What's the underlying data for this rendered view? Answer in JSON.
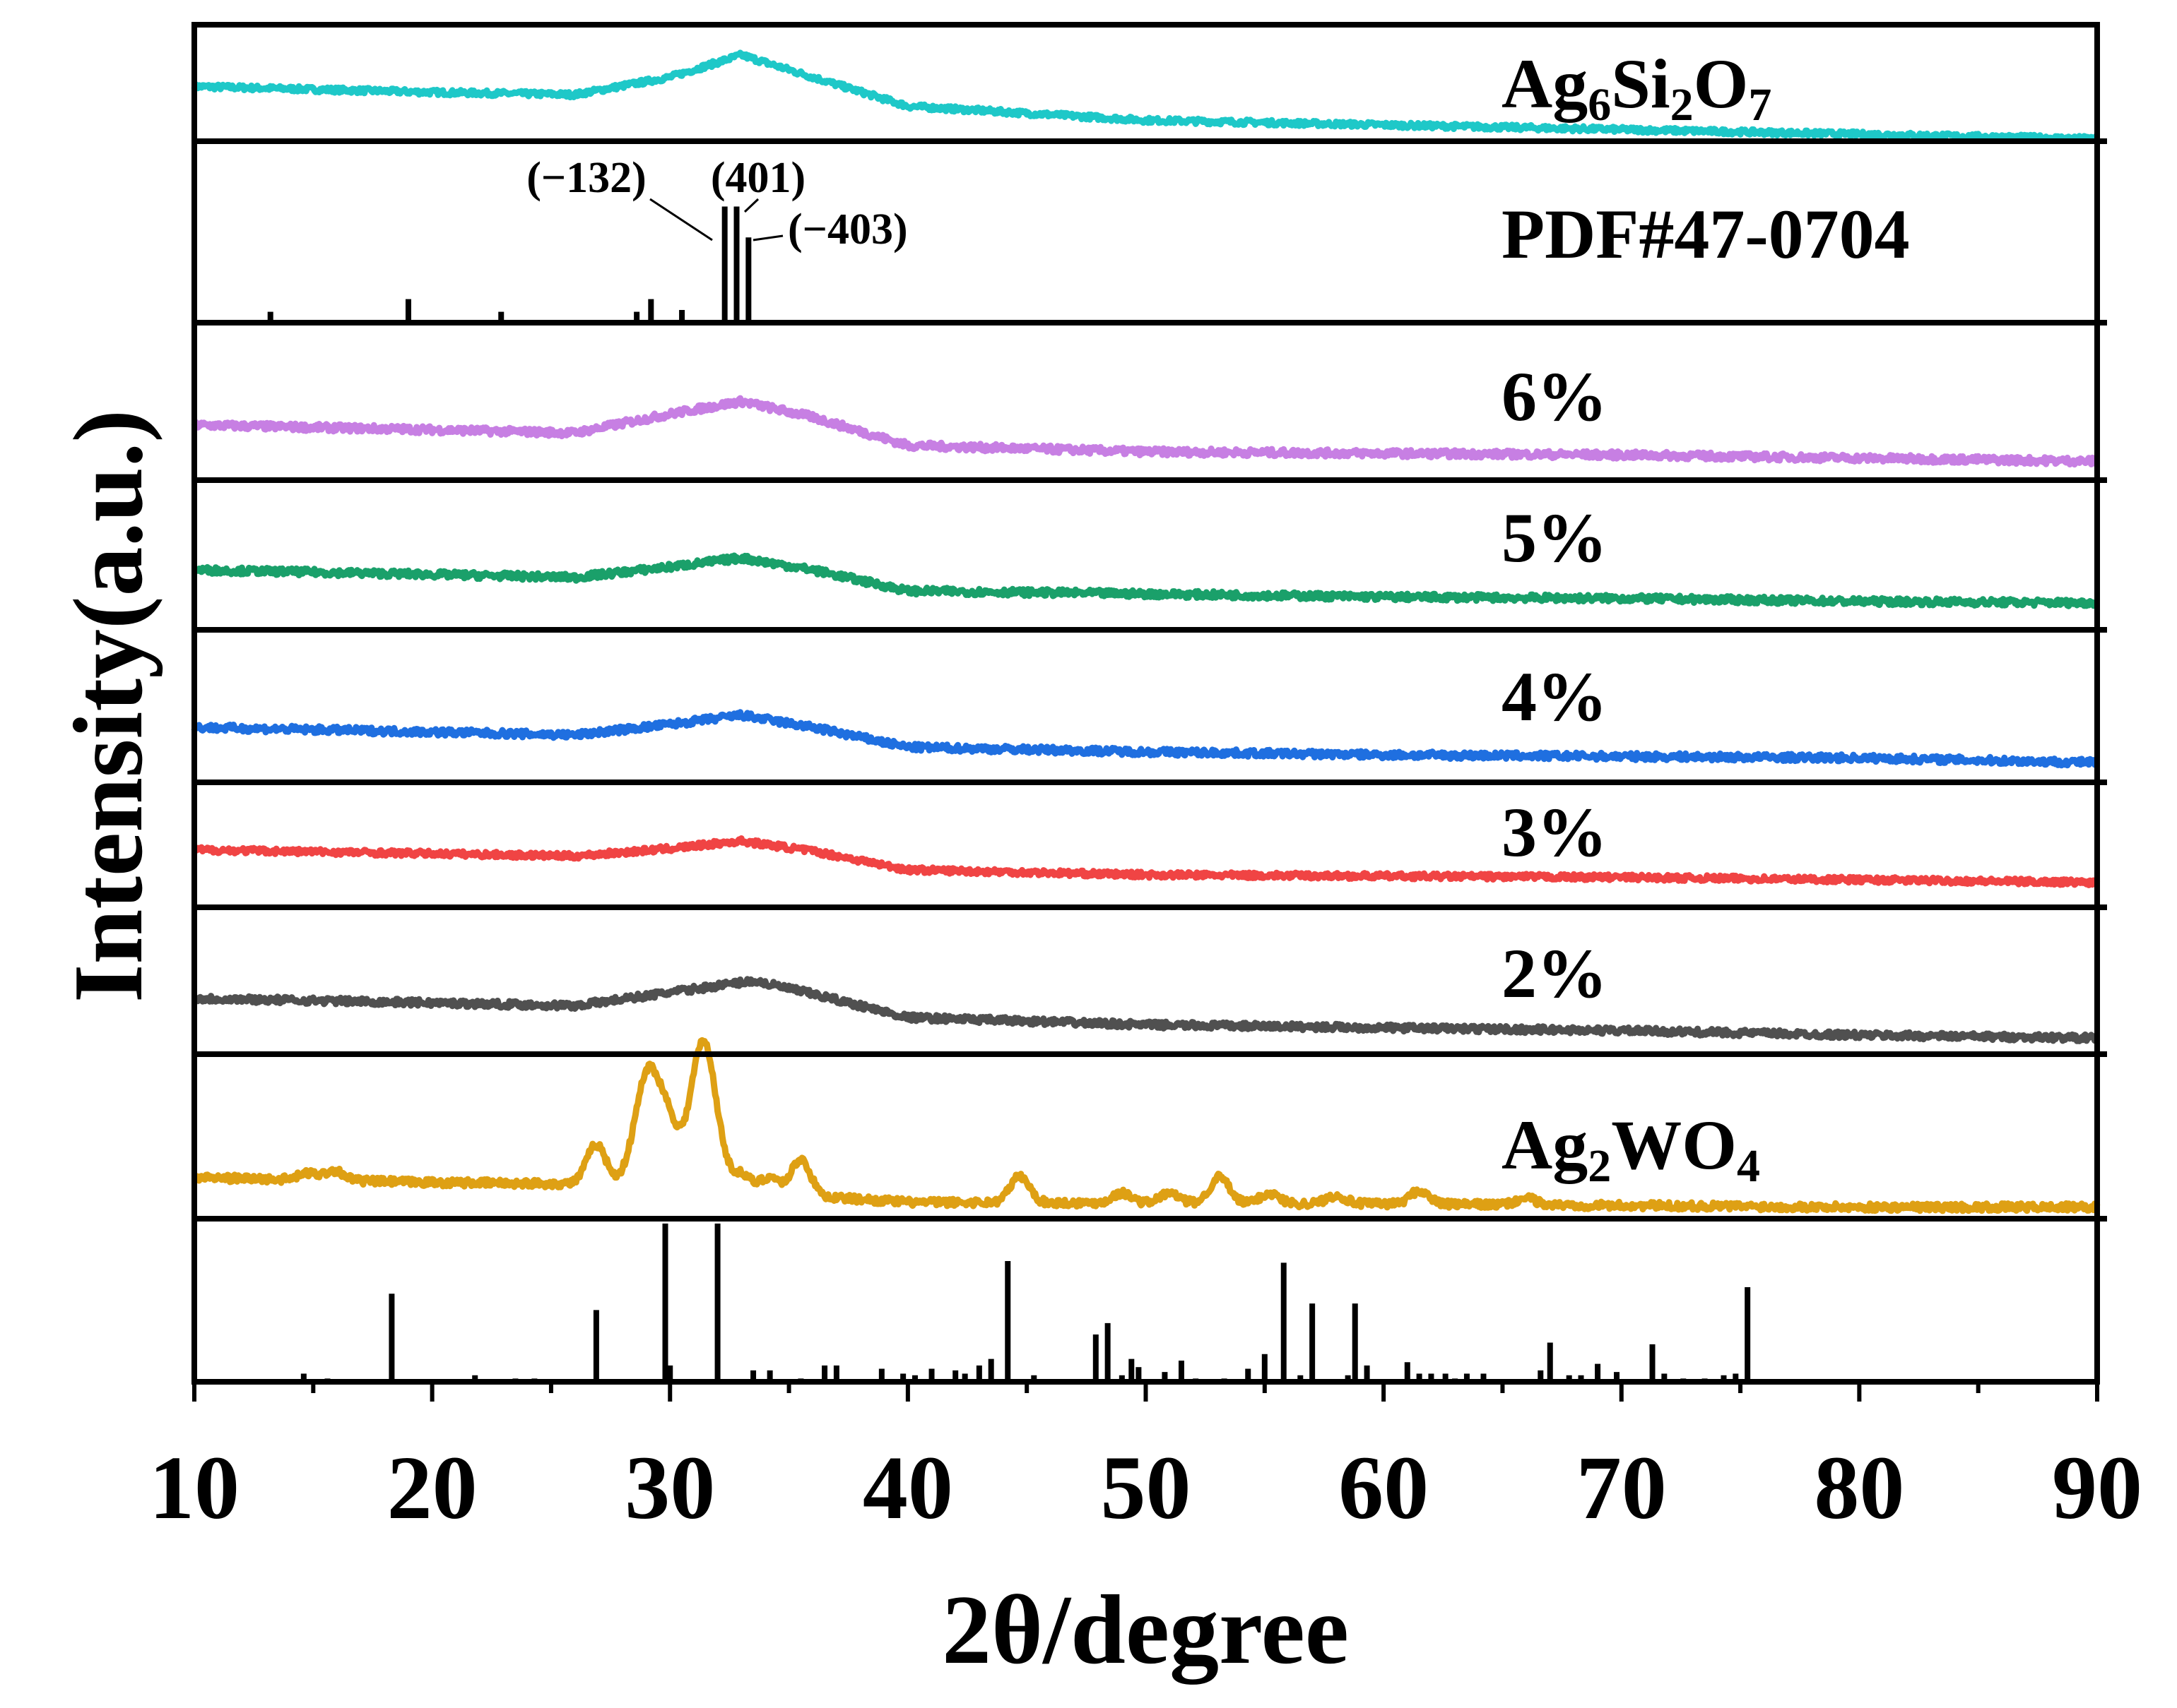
{
  "chart_data": {
    "type": "line",
    "title": "",
    "xlabel": "2θ/degree",
    "ylabel": "Intensity(a.u.)",
    "xlim": [
      10,
      90
    ],
    "xticks": [
      "10",
      "20",
      "30",
      "40",
      "50",
      "60",
      "70",
      "80",
      "90"
    ],
    "grid": false,
    "panels": [
      {
        "name": "Ag6Si2O7",
        "kind": "curve",
        "color": "#1ec8c8",
        "label_parts": [
          [
            "Ag",
            0
          ],
          [
            "6",
            1
          ],
          [
            "Si",
            0
          ],
          [
            "2",
            1
          ],
          [
            "O",
            0
          ],
          [
            "7",
            1
          ]
        ],
        "points": [
          [
            10,
            0.47
          ],
          [
            20,
            0.42
          ],
          [
            26,
            0.4
          ],
          [
            30,
            0.55
          ],
          [
            33,
            0.74
          ],
          [
            36,
            0.55
          ],
          [
            40,
            0.3
          ],
          [
            50,
            0.18
          ],
          [
            60,
            0.14
          ],
          [
            70,
            0.1
          ],
          [
            80,
            0.06
          ],
          [
            90,
            0.02
          ]
        ]
      },
      {
        "name": "PDF#47-0704",
        "kind": "sticks",
        "label_parts": [
          [
            "PDF#47-0704",
            0
          ]
        ],
        "sticks": [
          [
            13.2,
            0.06
          ],
          [
            19.0,
            0.13
          ],
          [
            22.9,
            0.06
          ],
          [
            28.6,
            0.06
          ],
          [
            29.2,
            0.13
          ],
          [
            30.5,
            0.07
          ],
          [
            32.3,
            0.64
          ],
          [
            32.8,
            0.64
          ],
          [
            33.3,
            0.47
          ]
        ],
        "annotations": [
          {
            "text": "(−132)",
            "x": 32.3
          },
          {
            "text": "(401)",
            "x": 32.8
          },
          {
            "text": "(−403)",
            "x": 33.3
          }
        ]
      },
      {
        "name": "6%",
        "kind": "curve",
        "color": "#c77fe3",
        "label_parts": [
          [
            "6%",
            0
          ]
        ],
        "points": [
          [
            10,
            0.35
          ],
          [
            20,
            0.32
          ],
          [
            26,
            0.3
          ],
          [
            30,
            0.42
          ],
          [
            33,
            0.5
          ],
          [
            36,
            0.4
          ],
          [
            40,
            0.22
          ],
          [
            50,
            0.18
          ],
          [
            60,
            0.17
          ],
          [
            70,
            0.16
          ],
          [
            80,
            0.14
          ],
          [
            90,
            0.12
          ]
        ]
      },
      {
        "name": "5%",
        "kind": "curve",
        "color": "#1aa06a",
        "label_parts": [
          [
            "5%",
            0
          ]
        ],
        "points": [
          [
            10,
            0.4
          ],
          [
            20,
            0.37
          ],
          [
            26,
            0.35
          ],
          [
            30,
            0.42
          ],
          [
            33,
            0.48
          ],
          [
            36,
            0.4
          ],
          [
            40,
            0.26
          ],
          [
            50,
            0.24
          ],
          [
            60,
            0.22
          ],
          [
            70,
            0.21
          ],
          [
            80,
            0.19
          ],
          [
            90,
            0.18
          ]
        ]
      },
      {
        "name": "4%",
        "kind": "curve",
        "color": "#1f6fe0",
        "label_parts": [
          [
            "4%",
            0
          ]
        ],
        "points": [
          [
            10,
            0.36
          ],
          [
            20,
            0.33
          ],
          [
            26,
            0.31
          ],
          [
            30,
            0.38
          ],
          [
            33,
            0.44
          ],
          [
            36,
            0.36
          ],
          [
            40,
            0.23
          ],
          [
            50,
            0.2
          ],
          [
            60,
            0.18
          ],
          [
            70,
            0.17
          ],
          [
            80,
            0.16
          ],
          [
            90,
            0.13
          ]
        ]
      },
      {
        "name": "3%",
        "kind": "curve",
        "color": "#f04444",
        "label_parts": [
          [
            "3%",
            0
          ]
        ],
        "points": [
          [
            10,
            0.46
          ],
          [
            20,
            0.43
          ],
          [
            26,
            0.41
          ],
          [
            30,
            0.47
          ],
          [
            33,
            0.53
          ],
          [
            36,
            0.45
          ],
          [
            40,
            0.3
          ],
          [
            50,
            0.26
          ],
          [
            60,
            0.25
          ],
          [
            70,
            0.24
          ],
          [
            80,
            0.22
          ],
          [
            90,
            0.2
          ]
        ]
      },
      {
        "name": "2%",
        "kind": "curve",
        "color": "#505050",
        "label_parts": [
          [
            "2%",
            0
          ]
        ],
        "points": [
          [
            10,
            0.38
          ],
          [
            20,
            0.35
          ],
          [
            26,
            0.33
          ],
          [
            30,
            0.42
          ],
          [
            33.5,
            0.5
          ],
          [
            36,
            0.41
          ],
          [
            40,
            0.25
          ],
          [
            50,
            0.2
          ],
          [
            60,
            0.18
          ],
          [
            70,
            0.16
          ],
          [
            80,
            0.13
          ],
          [
            90,
            0.11
          ]
        ]
      },
      {
        "name": "Ag2WO4",
        "kind": "curve",
        "color": "#dea014",
        "label_parts": [
          [
            "Ag",
            0
          ],
          [
            "2",
            1
          ],
          [
            "WO",
            0
          ],
          [
            "4",
            1
          ]
        ],
        "baseline": [
          [
            10,
            0.25
          ],
          [
            20,
            0.22
          ],
          [
            28,
            0.21
          ],
          [
            40,
            0.1
          ],
          [
            60,
            0.09
          ],
          [
            80,
            0.07
          ],
          [
            90,
            0.07
          ]
        ],
        "peaks": [
          [
            14.8,
            0.04
          ],
          [
            15.9,
            0.06
          ],
          [
            26.9,
            0.24
          ],
          [
            29.1,
            0.7
          ],
          [
            30.0,
            0.26
          ],
          [
            31.4,
            0.9
          ],
          [
            33.0,
            0.1
          ],
          [
            34.2,
            0.1
          ],
          [
            35.5,
            0.22
          ],
          [
            44.7,
            0.16
          ],
          [
            49.0,
            0.06
          ],
          [
            51.0,
            0.06
          ],
          [
            53.1,
            0.16
          ],
          [
            55.2,
            0.06
          ],
          [
            58.0,
            0.05
          ],
          [
            61.5,
            0.08
          ],
          [
            66.0,
            0.04
          ]
        ]
      },
      {
        "name": "Ag2WO4 reference",
        "kind": "sticks",
        "label_parts": [],
        "sticks": [
          [
            14.6,
            0.05
          ],
          [
            15.6,
            0.02
          ],
          [
            18.3,
            0.54
          ],
          [
            21.8,
            0.04
          ],
          [
            23.5,
            0.02
          ],
          [
            24.3,
            0.02
          ],
          [
            26.9,
            0.44
          ],
          [
            29.8,
            0.97
          ],
          [
            30.0,
            0.1
          ],
          [
            32.0,
            0.97
          ],
          [
            33.5,
            0.07
          ],
          [
            34.2,
            0.07
          ],
          [
            35.5,
            0.02
          ],
          [
            36.5,
            0.1
          ],
          [
            37.0,
            0.1
          ],
          [
            38.9,
            0.08
          ],
          [
            39.8,
            0.05
          ],
          [
            40.3,
            0.04
          ],
          [
            41.0,
            0.08
          ],
          [
            42.0,
            0.07
          ],
          [
            42.4,
            0.05
          ],
          [
            43.0,
            0.1
          ],
          [
            43.5,
            0.14
          ],
          [
            44.2,
            0.74
          ],
          [
            45.3,
            0.04
          ],
          [
            47.9,
            0.29
          ],
          [
            48.4,
            0.36
          ],
          [
            49.0,
            0.04
          ],
          [
            49.4,
            0.14
          ],
          [
            49.7,
            0.09
          ],
          [
            50.8,
            0.06
          ],
          [
            51.5,
            0.13
          ],
          [
            52.1,
            0.02
          ],
          [
            53.3,
            0.02
          ],
          [
            54.3,
            0.08
          ],
          [
            55.0,
            0.17
          ],
          [
            55.8,
            0.73
          ],
          [
            56.5,
            0.04
          ],
          [
            57.0,
            0.48
          ],
          [
            58.5,
            0.04
          ],
          [
            58.8,
            0.48
          ],
          [
            59.3,
            0.1
          ],
          [
            61.0,
            0.12
          ],
          [
            61.5,
            0.05
          ],
          [
            62.0,
            0.05
          ],
          [
            62.6,
            0.05
          ],
          [
            63.0,
            0.02
          ],
          [
            63.5,
            0.05
          ],
          [
            64.2,
            0.05
          ],
          [
            66.6,
            0.07
          ],
          [
            67.0,
            0.24
          ],
          [
            67.8,
            0.04
          ],
          [
            68.3,
            0.04
          ],
          [
            69.0,
            0.11
          ],
          [
            69.8,
            0.06
          ],
          [
            71.3,
            0.23
          ],
          [
            71.8,
            0.05
          ],
          [
            72.6,
            0.02
          ],
          [
            73.5,
            0.02
          ],
          [
            74.3,
            0.04
          ],
          [
            74.8,
            0.05
          ],
          [
            75.3,
            0.58
          ]
        ]
      }
    ]
  }
}
